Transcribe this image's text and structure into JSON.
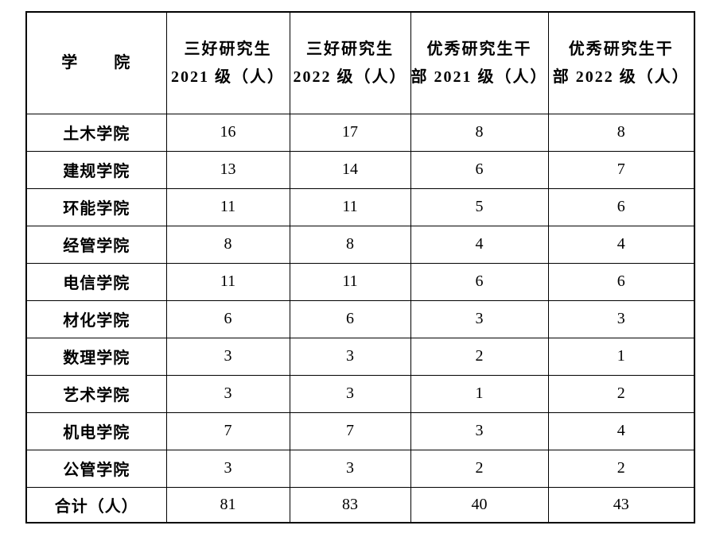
{
  "table": {
    "header": [
      {
        "lines": [
          "学　　院"
        ]
      },
      {
        "lines": [
          "三好研究生",
          "2021 级（人）"
        ]
      },
      {
        "lines": [
          "三好研究生",
          "2022 级（人）"
        ]
      },
      {
        "lines": [
          "优秀研究生干",
          "部 2021 级（人）"
        ]
      },
      {
        "lines": [
          "优秀研究生干",
          "部 2022 级（人）"
        ]
      }
    ],
    "rows": [
      {
        "name": "土木学院",
        "values": [
          "16",
          "17",
          "8",
          "8"
        ]
      },
      {
        "name": "建规学院",
        "values": [
          "13",
          "14",
          "6",
          "7"
        ]
      },
      {
        "name": "环能学院",
        "values": [
          "11",
          "11",
          "5",
          "6"
        ]
      },
      {
        "name": "经管学院",
        "values": [
          "8",
          "8",
          "4",
          "4"
        ]
      },
      {
        "name": "电信学院",
        "values": [
          "11",
          "11",
          "6",
          "6"
        ]
      },
      {
        "name": "材化学院",
        "values": [
          "6",
          "6",
          "3",
          "3"
        ]
      },
      {
        "name": "数理学院",
        "values": [
          "3",
          "3",
          "2",
          "1"
        ]
      },
      {
        "name": "艺术学院",
        "values": [
          "3",
          "3",
          "1",
          "2"
        ]
      },
      {
        "name": "机电学院",
        "values": [
          "7",
          "7",
          "3",
          "4"
        ]
      },
      {
        "name": "公管学院",
        "values": [
          "3",
          "3",
          "2",
          "2"
        ]
      }
    ],
    "total": {
      "name": "合计（人）",
      "values": [
        "81",
        "83",
        "40",
        "43"
      ]
    },
    "colors": {
      "border": "#000000",
      "text": "#000000",
      "background": "#ffffff"
    }
  }
}
